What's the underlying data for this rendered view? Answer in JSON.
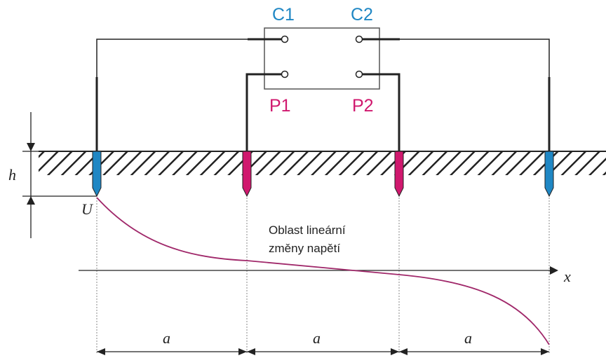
{
  "terminals": {
    "c1": "C1",
    "c2": "C2",
    "p1": "P1",
    "p2": "P2"
  },
  "labels": {
    "depth": "h",
    "potential": "U",
    "x_axis": "x",
    "spacing": [
      "a",
      "a",
      "a"
    ],
    "region_line1": "Oblast lineární",
    "region_line2": "změny napětí"
  },
  "colors": {
    "current_electrode": "#1f87c4",
    "potential_electrode": "#d0186e",
    "curve": "#a0286a",
    "wire": "#222222"
  }
}
